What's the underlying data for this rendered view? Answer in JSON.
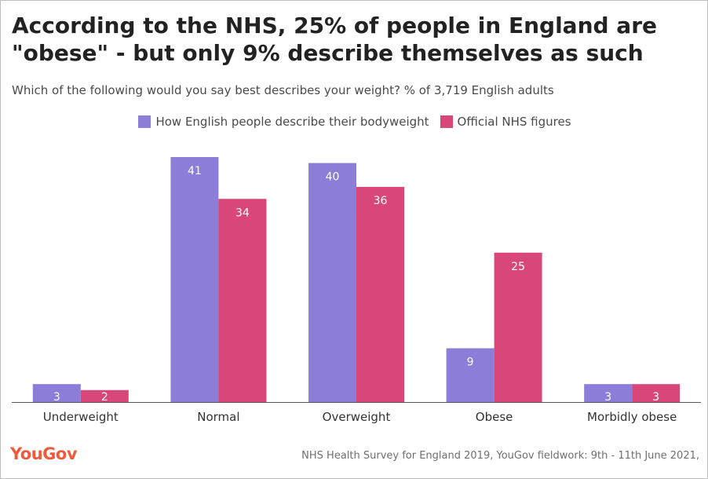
{
  "title": "According to the NHS, 25% of people in England are\n\"obese\" - but only 9% describe themselves as such",
  "subtitle": "Which of the following would you say best describes your weight? % of 3,719 English adults",
  "brand": "YouGov",
  "source": "NHS Health Survey for England 2019, YouGov fieldwork: 9th - 11th June 2021,",
  "chart_data": {
    "type": "bar",
    "categories": [
      "Underweight",
      "Normal",
      "Overweight",
      "Obese",
      "Morbidly obese"
    ],
    "series": [
      {
        "name": "How English people describe their bodyweight",
        "values": [
          3,
          41,
          40,
          9,
          3
        ],
        "color": "#8b7dd8"
      },
      {
        "name": "Official NHS figures",
        "values": [
          2,
          34,
          36,
          25,
          3
        ],
        "color": "#d9467a"
      }
    ],
    "ylim": [
      0,
      41
    ],
    "grid": false,
    "legend": "top-center"
  }
}
